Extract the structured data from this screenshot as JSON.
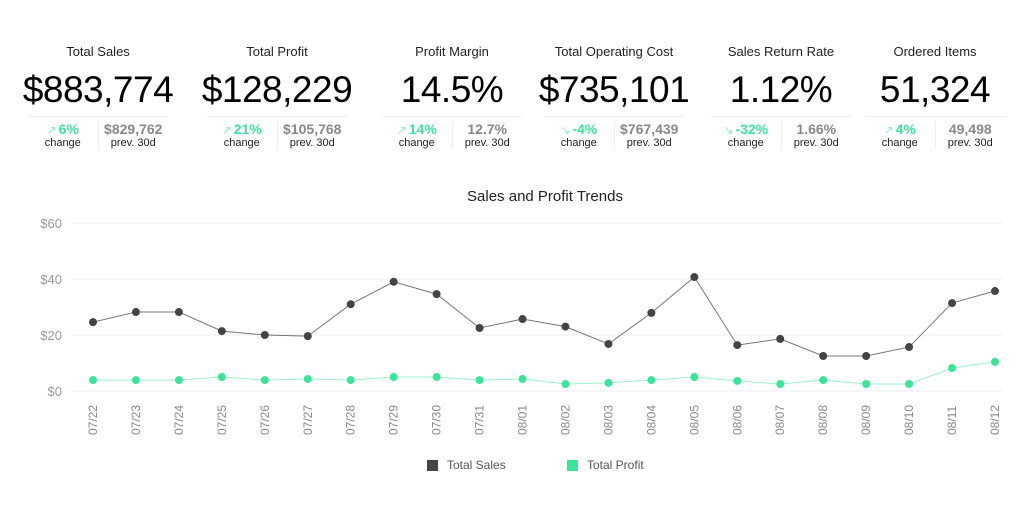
{
  "kpis": [
    {
      "title": "Total Sales",
      "value": "$883,774",
      "change": "6%",
      "direction": "up",
      "change_label": "change",
      "prev": "$829,762",
      "prev_label": "prev. 30d"
    },
    {
      "title": "Total Profit",
      "value": "$128,229",
      "change": "21%",
      "direction": "up",
      "change_label": "change",
      "prev": "$105,768",
      "prev_label": "prev. 30d"
    },
    {
      "title": "Profit Margin",
      "value": "14.5%",
      "change": "14%",
      "direction": "up",
      "change_label": "change",
      "prev": "12.7%",
      "prev_label": "prev. 30d"
    },
    {
      "title": "Total Operating Cost",
      "value": "$735,101",
      "change": "-4%",
      "direction": "down",
      "change_label": "change",
      "prev": "$767,439",
      "prev_label": "prev. 30d"
    },
    {
      "title": "Sales Return Rate",
      "value": "1.12%",
      "change": "-32%",
      "direction": "down",
      "change_label": "change",
      "prev": "1.66%",
      "prev_label": "prev. 30d"
    },
    {
      "title": "Ordered Items",
      "value": "51,324",
      "change": "4%",
      "direction": "up",
      "change_label": "change",
      "prev": "49,498",
      "prev_label": "prev. 30d"
    }
  ],
  "chart_data": {
    "type": "line",
    "title": "Sales and Profit Trends",
    "xlabel": "",
    "ylabel": "",
    "ylim": [
      0,
      60
    ],
    "yticks": [
      "$0",
      "$20",
      "$40",
      "$60"
    ],
    "grid": true,
    "legend": "bottom",
    "categories": [
      "07/22",
      "07/23",
      "07/24",
      "07/25",
      "07/26",
      "07/27",
      "07/28",
      "07/29",
      "07/30",
      "07/31",
      "08/01",
      "08/02",
      "08/03",
      "08/04",
      "08/05",
      "08/06",
      "08/07",
      "08/08",
      "08/09",
      "08/10",
      "08/11",
      "08/12"
    ],
    "series": [
      {
        "name": "Total Sales",
        "color": "#444444",
        "values": [
          24.6,
          28.2,
          28.2,
          21.4,
          20.0,
          19.6,
          31.0,
          39.0,
          34.6,
          22.5,
          25.7,
          23.0,
          16.8,
          27.9,
          40.7,
          16.4,
          18.6,
          12.5,
          12.5,
          15.7,
          31.4,
          35.7
        ]
      },
      {
        "name": "Total Profit",
        "color": "#3ee39a",
        "values": [
          3.9,
          3.9,
          3.9,
          5.0,
          3.9,
          4.3,
          3.9,
          5.0,
          5.0,
          3.9,
          4.3,
          2.5,
          2.9,
          3.9,
          5.0,
          3.6,
          2.5,
          3.9,
          2.5,
          2.5,
          8.2,
          10.4
        ]
      }
    ]
  }
}
